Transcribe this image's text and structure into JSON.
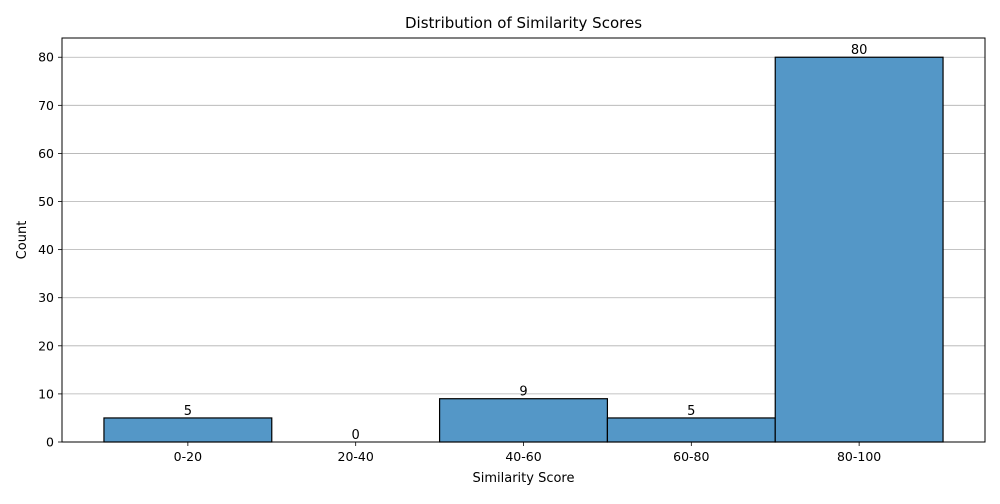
{
  "chart_data": {
    "type": "bar",
    "title": "Distribution of Similarity Scores",
    "xlabel": "Similarity Score",
    "ylabel": "Count",
    "categories": [
      "0-20",
      "20-40",
      "40-60",
      "60-80",
      "80-100"
    ],
    "values": [
      5,
      0,
      9,
      5,
      80
    ],
    "data_labels": [
      "5",
      "0",
      "9",
      "5",
      "80"
    ],
    "yticks": [
      0,
      10,
      20,
      30,
      40,
      50,
      60,
      70,
      80
    ],
    "ylim": [
      0,
      84
    ],
    "grid": "horizontal",
    "legend": "none",
    "bar_color": "#5497c7",
    "edge_color": "#000000",
    "grid_color": "#b0b0b0"
  }
}
